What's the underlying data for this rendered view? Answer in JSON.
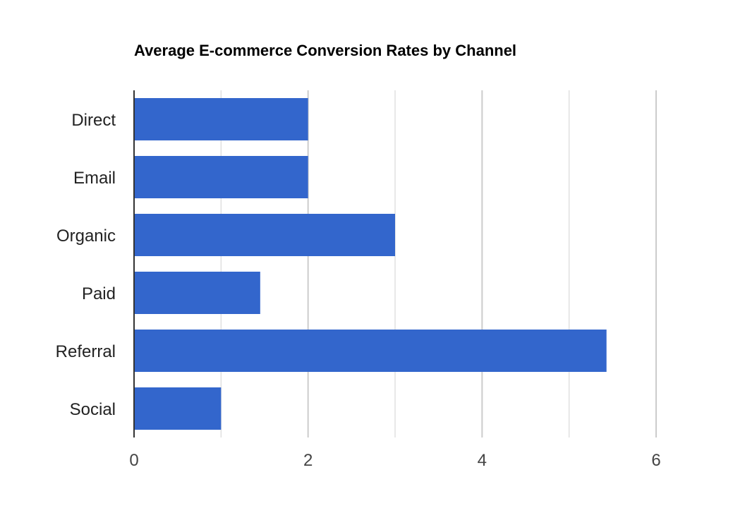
{
  "chart_data": {
    "type": "bar",
    "orientation": "horizontal",
    "title": "Average E-commerce Conversion Rates by Channel",
    "xlabel": "",
    "ylabel": "",
    "categories": [
      "Direct",
      "Email",
      "Organic",
      "Paid",
      "Referral",
      "Social"
    ],
    "values": [
      2.0,
      2.0,
      3.0,
      1.45,
      5.43,
      1.0
    ],
    "xlim": [
      0,
      6
    ],
    "xticks": [
      "0",
      "2",
      "4",
      "6"
    ],
    "grid": true,
    "legend": "none",
    "bar_color": "#3366cc",
    "gridline_color": "#e0e0e0",
    "major_gridline_color": "#cccccc",
    "axis_color": "#333333"
  }
}
